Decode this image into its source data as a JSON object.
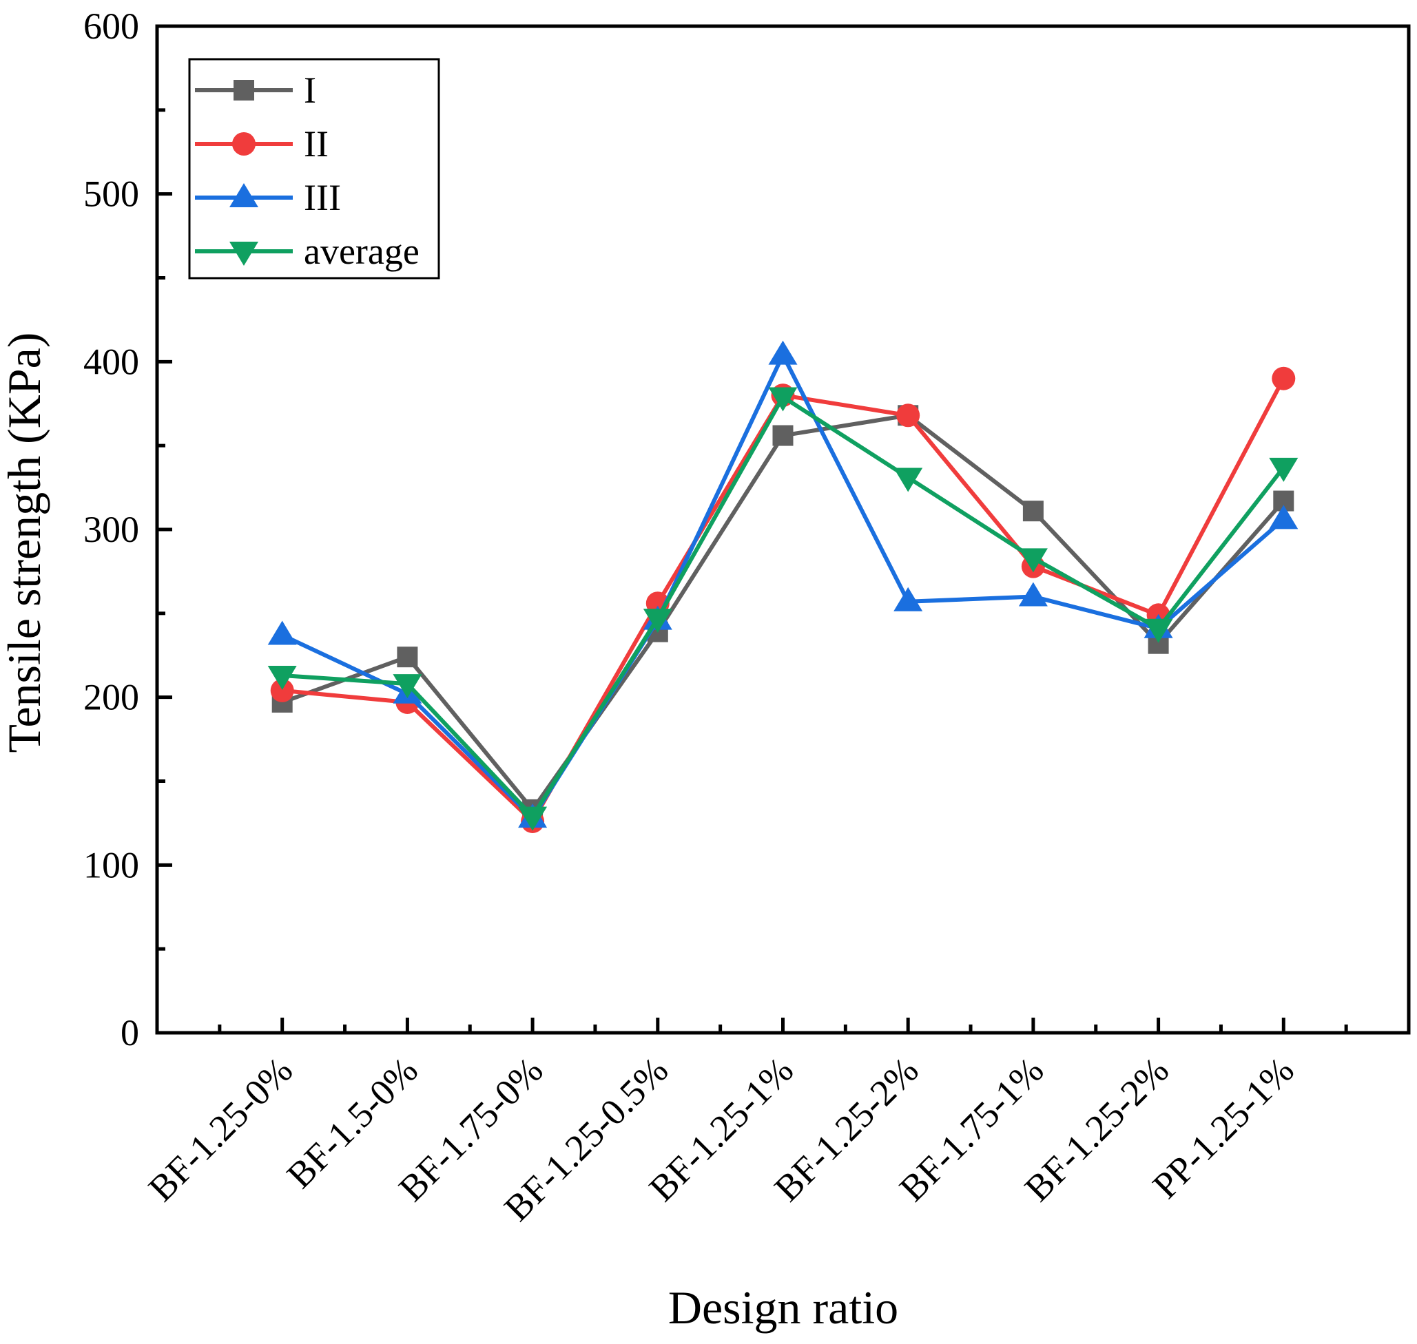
{
  "chart_data": {
    "type": "line",
    "title": "",
    "xlabel": "Design ratio",
    "ylabel": "Tensile strength (KPa)",
    "ylim": [
      0,
      600
    ],
    "yticks": [
      0,
      100,
      200,
      300,
      400,
      500,
      600
    ],
    "grid": false,
    "legend_position": "top-left",
    "categories": [
      "BF-1.25-0%",
      "BF-1.5-0%",
      "BF-1.75-0%",
      "BF-1.25-0.5%",
      "BF-1.25-1%",
      "BF-1.25-2%",
      "BF-1.75-1%",
      "BF-1.25-2%",
      "PP-1.25-1%"
    ],
    "series": [
      {
        "name": "I",
        "color": "#606060",
        "marker": "square",
        "values": [
          197,
          224,
          133,
          239,
          356,
          368,
          311,
          232,
          317
        ]
      },
      {
        "name": "II",
        "color": "#f03c3c",
        "marker": "circle",
        "values": [
          204,
          197,
          126,
          256,
          380,
          368,
          278,
          249,
          390
        ]
      },
      {
        "name": "III",
        "color": "#1a6fdf",
        "marker": "triangle-up",
        "values": [
          237,
          202,
          128,
          246,
          404,
          257,
          260,
          241,
          306
        ]
      },
      {
        "name": "average",
        "color": "#0fa060",
        "marker": "triangle-down",
        "values": [
          213,
          208,
          129,
          247,
          379,
          331,
          283,
          241,
          337
        ]
      }
    ]
  }
}
